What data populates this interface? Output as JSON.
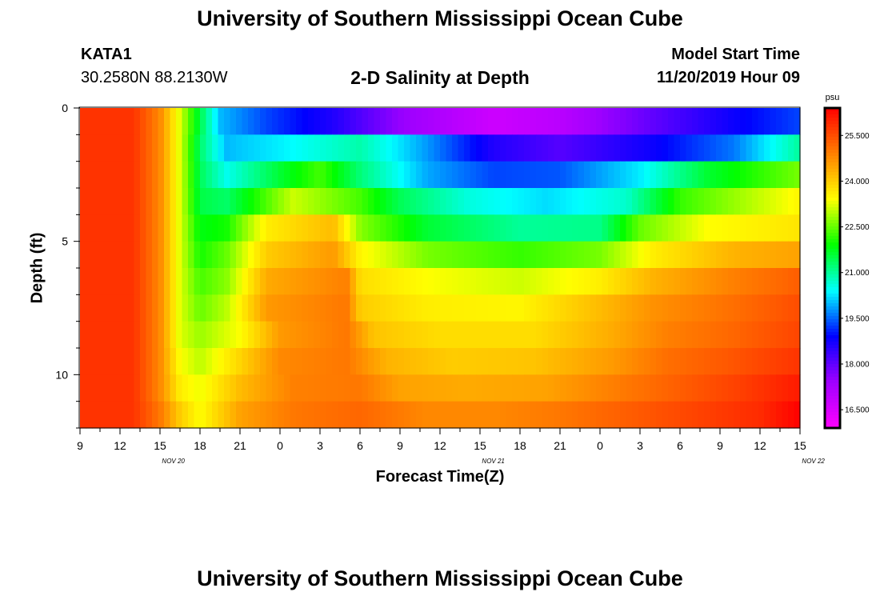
{
  "header": {
    "title": "University of Southern Mississippi Ocean Cube",
    "station": "KATA1",
    "coords": "30.2580N 88.2130W",
    "subtitle": "2-D Salinity at Depth",
    "model_label": "Model Start Time",
    "model_time": "11/20/2019 Hour 09"
  },
  "footer": {
    "title": "University of Southern Mississippi Ocean Cube"
  },
  "chart_data": {
    "type": "heatmap",
    "title": "2-D Salinity at Depth",
    "xlabel": "Forecast Time(Z)",
    "ylabel": "Depth (ft)",
    "x_tick_labels": [
      "9",
      "12",
      "15",
      "18",
      "21",
      "0",
      "3",
      "6",
      "9",
      "12",
      "15",
      "18",
      "21",
      "0",
      "3",
      "6",
      "9",
      "12",
      "15"
    ],
    "x_date_labels": [
      {
        "label": "NOV 20",
        "hour": 16
      },
      {
        "label": "NOV 21",
        "hour": 40
      },
      {
        "label": "NOV 22",
        "hour": 64
      }
    ],
    "x_hours_range": [
      9,
      63
    ],
    "x_range_labels": [
      "2019-11-20 09Z",
      "2019-11-22 15Z"
    ],
    "y_tick_labels": [
      "0",
      "5",
      "10"
    ],
    "y_ticks": [
      0,
      5,
      10
    ],
    "ylim": [
      0,
      12
    ],
    "colorbar": {
      "unit": "psu",
      "tick_labels": [
        "25.500",
        "24.000",
        "22.500",
        "21.000",
        "19.500",
        "18.000",
        "16.500"
      ],
      "ticks": [
        25.5,
        24.0,
        22.5,
        21.0,
        19.5,
        18.0,
        16.5
      ],
      "range": [
        15.9,
        26.4
      ],
      "colormap": [
        "#ff00ff",
        "#a000ff",
        "#0000ff",
        "#00ffff",
        "#00ff00",
        "#ffff00",
        "#ff8000",
        "#ff0000"
      ]
    },
    "layers": [
      {
        "depth_top": 0,
        "depth_bottom": 1,
        "knots": [
          [
            9,
            25.8
          ],
          [
            13,
            25.8
          ],
          [
            15,
            24.8
          ],
          [
            16.5,
            23.2
          ],
          [
            18,
            21.5
          ],
          [
            19.5,
            20.0
          ],
          [
            23,
            19.3
          ],
          [
            28,
            18.6
          ],
          [
            33,
            17.5
          ],
          [
            40,
            16.7
          ],
          [
            45,
            17.0
          ],
          [
            52,
            18.0
          ],
          [
            58,
            18.8
          ],
          [
            63,
            19.3
          ]
        ]
      },
      {
        "depth_top": 1,
        "depth_bottom": 2,
        "knots": [
          [
            9,
            25.8
          ],
          [
            13,
            25.8
          ],
          [
            15,
            24.8
          ],
          [
            16.5,
            23.2
          ],
          [
            18,
            21.3
          ],
          [
            20,
            20.0
          ],
          [
            25,
            20.4
          ],
          [
            30,
            20.9
          ],
          [
            35,
            19.8
          ],
          [
            40,
            18.6
          ],
          [
            45,
            18.1
          ],
          [
            52,
            18.8
          ],
          [
            58,
            19.6
          ],
          [
            63,
            21.0
          ]
        ]
      },
      {
        "depth_top": 2,
        "depth_bottom": 3,
        "knots": [
          [
            9,
            25.8
          ],
          [
            13,
            25.8
          ],
          [
            15,
            24.8
          ],
          [
            16.5,
            23.2
          ],
          [
            18,
            21.4
          ],
          [
            20,
            20.5
          ],
          [
            24,
            21.6
          ],
          [
            27,
            22.3
          ],
          [
            30,
            21.2
          ],
          [
            35,
            19.9
          ],
          [
            40,
            19.3
          ],
          [
            45,
            19.4
          ],
          [
            51,
            20.3
          ],
          [
            56,
            21.6
          ],
          [
            63,
            22.6
          ]
        ]
      },
      {
        "depth_top": 3,
        "depth_bottom": 4,
        "knots": [
          [
            9,
            25.8
          ],
          [
            13,
            25.8
          ],
          [
            15,
            24.8
          ],
          [
            16.5,
            23.2
          ],
          [
            18,
            21.5
          ],
          [
            20,
            21.3
          ],
          [
            22,
            22.0
          ],
          [
            25,
            23.1
          ],
          [
            30,
            22.3
          ],
          [
            33,
            21.4
          ],
          [
            38,
            20.6
          ],
          [
            44,
            20.2
          ],
          [
            50,
            20.7
          ],
          [
            54,
            22.2
          ],
          [
            63,
            23.5
          ]
        ]
      },
      {
        "depth_top": 4,
        "depth_bottom": 5,
        "knots": [
          [
            9,
            25.8
          ],
          [
            13,
            25.8
          ],
          [
            15,
            24.8
          ],
          [
            16.5,
            23.2
          ],
          [
            18,
            21.8
          ],
          [
            20,
            22.0
          ],
          [
            23,
            23.6
          ],
          [
            28,
            24.2
          ],
          [
            30,
            22.7
          ],
          [
            35,
            21.6
          ],
          [
            42,
            21.0
          ],
          [
            48,
            21.1
          ],
          [
            51,
            22.5
          ],
          [
            56,
            23.4
          ],
          [
            63,
            23.7
          ]
        ]
      },
      {
        "depth_top": 5,
        "depth_bottom": 6,
        "knots": [
          [
            9,
            25.8
          ],
          [
            13,
            25.8
          ],
          [
            15,
            24.8
          ],
          [
            16.5,
            23.2
          ],
          [
            18,
            22.0
          ],
          [
            20,
            22.5
          ],
          [
            23,
            24.0
          ],
          [
            28,
            24.6
          ],
          [
            30,
            23.5
          ],
          [
            35,
            22.6
          ],
          [
            42,
            22.2
          ],
          [
            48,
            22.6
          ],
          [
            52,
            23.6
          ],
          [
            58,
            24.3
          ],
          [
            63,
            24.5
          ]
        ]
      },
      {
        "depth_top": 6,
        "depth_bottom": 7,
        "knots": [
          [
            9,
            25.8
          ],
          [
            13,
            25.8
          ],
          [
            15,
            24.8
          ],
          [
            16.5,
            23.2
          ],
          [
            18,
            22.3
          ],
          [
            20,
            22.7
          ],
          [
            23,
            24.4
          ],
          [
            29,
            24.9
          ],
          [
            30,
            23.8
          ],
          [
            35,
            23.4
          ],
          [
            42,
            23.1
          ],
          [
            48,
            23.6
          ],
          [
            52,
            24.3
          ],
          [
            58,
            24.9
          ],
          [
            63,
            25.3
          ]
        ]
      },
      {
        "depth_top": 7,
        "depth_bottom": 8,
        "knots": [
          [
            9,
            25.8
          ],
          [
            13,
            25.8
          ],
          [
            15,
            24.8
          ],
          [
            16.5,
            23.2
          ],
          [
            18,
            22.5
          ],
          [
            20,
            23.0
          ],
          [
            23,
            24.6
          ],
          [
            29,
            25.0
          ],
          [
            30,
            24.0
          ],
          [
            35,
            23.6
          ],
          [
            42,
            23.5
          ],
          [
            48,
            24.2
          ],
          [
            52,
            24.7
          ],
          [
            58,
            25.1
          ],
          [
            63,
            25.5
          ]
        ]
      },
      {
        "depth_top": 8,
        "depth_bottom": 9,
        "knots": [
          [
            9,
            25.8
          ],
          [
            13,
            25.8
          ],
          [
            15,
            24.8
          ],
          [
            16.5,
            23.2
          ],
          [
            18,
            22.8
          ],
          [
            21,
            23.4
          ],
          [
            24,
            24.6
          ],
          [
            29,
            25.0
          ],
          [
            31,
            24.1
          ],
          [
            36,
            23.8
          ],
          [
            43,
            23.8
          ],
          [
            49,
            24.4
          ],
          [
            53,
            24.9
          ],
          [
            58,
            25.2
          ],
          [
            63,
            25.6
          ]
        ]
      },
      {
        "depth_top": 9,
        "depth_bottom": 10,
        "knots": [
          [
            9,
            25.8
          ],
          [
            13,
            25.8
          ],
          [
            15,
            24.8
          ],
          [
            16.5,
            23.4
          ],
          [
            18,
            23.0
          ],
          [
            21,
            23.9
          ],
          [
            24,
            24.8
          ],
          [
            29,
            25.0
          ],
          [
            32,
            24.3
          ],
          [
            37,
            24.0
          ],
          [
            43,
            24.1
          ],
          [
            49,
            24.6
          ],
          [
            53,
            25.1
          ],
          [
            58,
            25.4
          ],
          [
            63,
            25.8
          ]
        ]
      },
      {
        "depth_top": 10,
        "depth_bottom": 11,
        "knots": [
          [
            9,
            25.8
          ],
          [
            13,
            25.8
          ],
          [
            15,
            24.8
          ],
          [
            16.5,
            23.6
          ],
          [
            18,
            23.3
          ],
          [
            21,
            24.2
          ],
          [
            25,
            24.9
          ],
          [
            30,
            25.0
          ],
          [
            33,
            24.5
          ],
          [
            38,
            24.4
          ],
          [
            44,
            24.5
          ],
          [
            50,
            25.0
          ],
          [
            54,
            25.3
          ],
          [
            59,
            25.7
          ],
          [
            63,
            26.1
          ]
        ]
      },
      {
        "depth_top": 11,
        "depth_bottom": 12,
        "knots": [
          [
            9,
            25.8
          ],
          [
            13,
            25.8
          ],
          [
            15,
            25.0
          ],
          [
            16.5,
            24.0
          ],
          [
            18,
            23.4
          ],
          [
            21,
            24.5
          ],
          [
            25,
            25.0
          ],
          [
            30,
            25.2
          ],
          [
            35,
            24.8
          ],
          [
            40,
            24.8
          ],
          [
            45,
            25.0
          ],
          [
            50,
            25.3
          ],
          [
            55,
            25.6
          ],
          [
            60,
            25.9
          ],
          [
            63,
            26.4
          ]
        ]
      }
    ]
  }
}
